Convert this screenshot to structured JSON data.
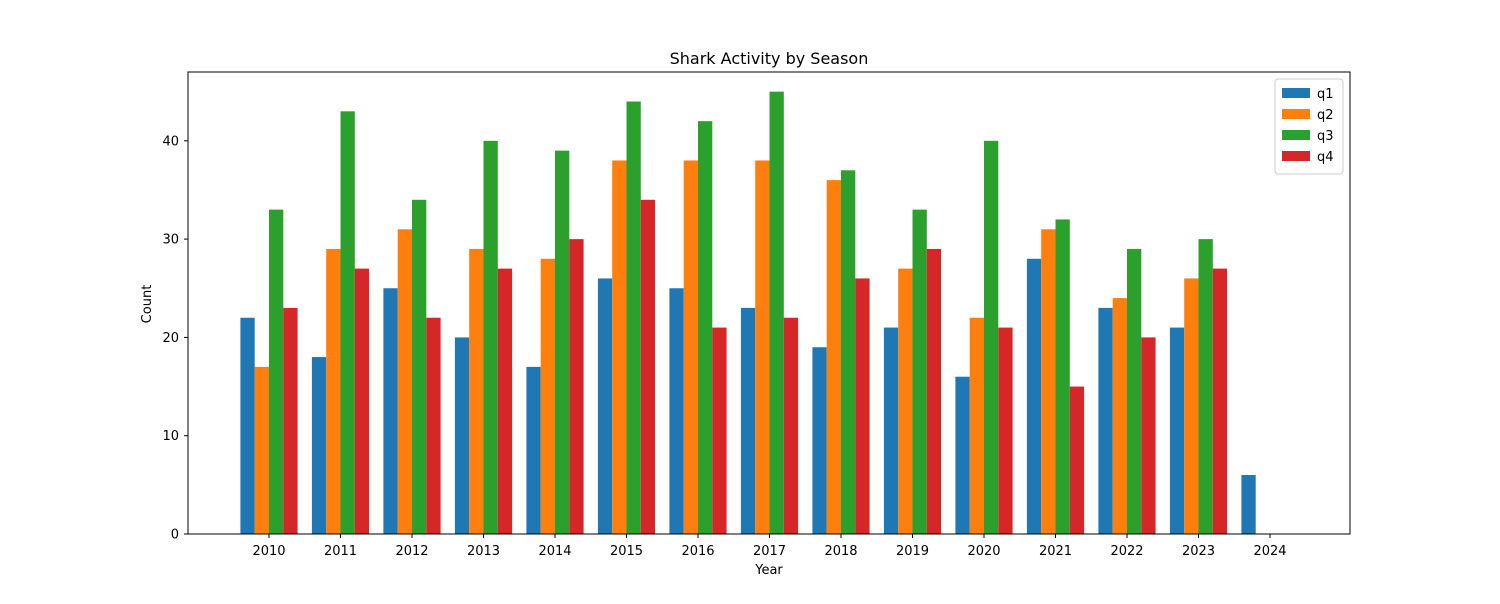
{
  "chart_data": {
    "type": "bar",
    "title": "Shark Activity by Season",
    "xlabel": "Year",
    "ylabel": "Count",
    "categories": [
      "2010",
      "2011",
      "2012",
      "2013",
      "2014",
      "2015",
      "2016",
      "2017",
      "2018",
      "2019",
      "2020",
      "2021",
      "2022",
      "2023",
      "2024"
    ],
    "ylim": [
      0,
      47
    ],
    "yticks": [
      0,
      10,
      20,
      30,
      40
    ],
    "grid": false,
    "legend_position": "top-right",
    "series": [
      {
        "name": "q1",
        "color": "#1f77b4",
        "values": [
          22,
          18,
          25,
          20,
          17,
          26,
          25,
          23,
          19,
          21,
          16,
          28,
          23,
          21,
          6
        ]
      },
      {
        "name": "q2",
        "color": "#ff7f0e",
        "values": [
          17,
          29,
          31,
          29,
          28,
          38,
          38,
          38,
          36,
          27,
          22,
          31,
          24,
          26,
          0
        ]
      },
      {
        "name": "q3",
        "color": "#2ca02c",
        "values": [
          33,
          43,
          34,
          40,
          39,
          44,
          42,
          45,
          37,
          33,
          40,
          32,
          29,
          30,
          0
        ]
      },
      {
        "name": "q4",
        "color": "#d62728",
        "values": [
          23,
          27,
          22,
          27,
          30,
          34,
          21,
          22,
          26,
          29,
          21,
          15,
          20,
          27,
          0
        ]
      }
    ]
  }
}
